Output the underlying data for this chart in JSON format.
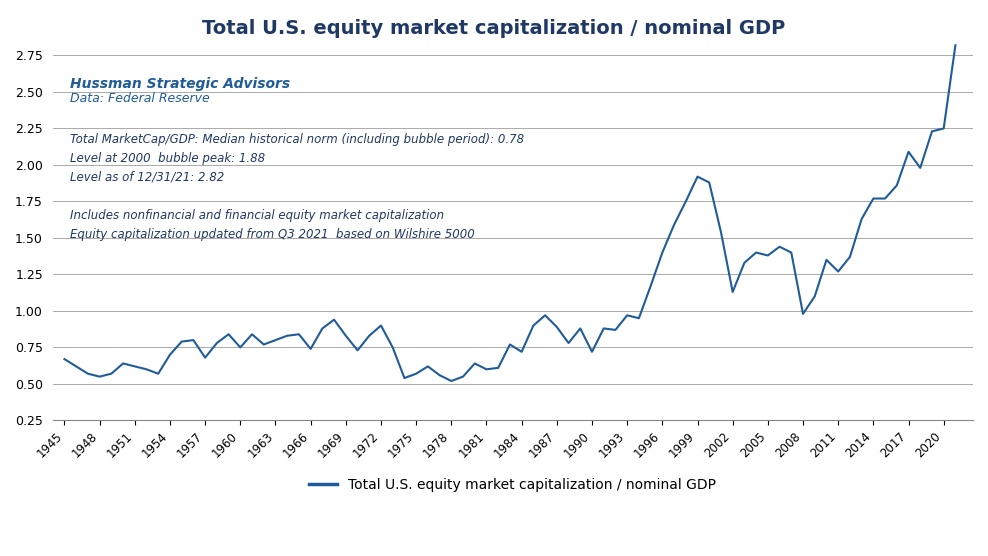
{
  "title": "Total U.S. equity market capitalization / nominal GDP",
  "title_color": "#1F3864",
  "line_color": "#1F5C99",
  "line_width": 1.5,
  "ylabel": "",
  "xlabel": "",
  "legend_label": "Total U.S. equity market capitalization / nominal GDP",
  "annotation1_bold": "Hussman Strategic Advisors",
  "annotation1_italic": "Data: Federal Reserve",
  "annotation2": "Total MarketCap/GDP: Median historical norm (including bubble period): 0.78\nLevel at 2000  bubble peak: 1.88\nLevel as of 12/31/21: 2.82",
  "annotation3": "Includes nonfinancial and financial equity market capitalization\nEquity capitalization updated from Q3 2021  based on Wilshire 5000",
  "annotation_color": "#1F5C99",
  "annotation_color2": "#1F3864",
  "ylim": [
    0.25,
    2.875
  ],
  "yticks": [
    0.25,
    0.5,
    0.75,
    1.0,
    1.25,
    1.5,
    1.75,
    2.0,
    2.25,
    2.5,
    2.75
  ],
  "background_color": "#FFFFFF",
  "grid_color": "#AAAAAA",
  "years": [
    1945,
    1946,
    1947,
    1948,
    1949,
    1950,
    1951,
    1952,
    1953,
    1954,
    1955,
    1956,
    1957,
    1958,
    1959,
    1960,
    1961,
    1962,
    1963,
    1964,
    1965,
    1966,
    1967,
    1968,
    1969,
    1970,
    1971,
    1972,
    1973,
    1974,
    1975,
    1976,
    1977,
    1978,
    1979,
    1980,
    1981,
    1982,
    1983,
    1984,
    1985,
    1986,
    1987,
    1988,
    1989,
    1990,
    1991,
    1992,
    1993,
    1994,
    1995,
    1996,
    1997,
    1998,
    1999,
    2000,
    2001,
    2002,
    2003,
    2004,
    2005,
    2006,
    2007,
    2008,
    2009,
    2010,
    2011,
    2012,
    2013,
    2014,
    2015,
    2016,
    2017,
    2018,
    2019,
    2020,
    2021
  ],
  "values": [
    0.67,
    0.62,
    0.57,
    0.55,
    0.57,
    0.64,
    0.62,
    0.6,
    0.57,
    0.7,
    0.79,
    0.8,
    0.68,
    0.78,
    0.84,
    0.75,
    0.84,
    0.77,
    0.8,
    0.83,
    0.84,
    0.74,
    0.88,
    0.94,
    0.83,
    0.73,
    0.83,
    0.9,
    0.75,
    0.54,
    0.57,
    0.62,
    0.56,
    0.52,
    0.55,
    0.64,
    0.6,
    0.61,
    0.77,
    0.72,
    0.9,
    0.97,
    0.89,
    0.78,
    0.88,
    0.72,
    0.88,
    0.87,
    0.97,
    0.95,
    1.17,
    1.4,
    1.59,
    1.75,
    1.92,
    1.88,
    1.54,
    1.13,
    1.33,
    1.4,
    1.38,
    1.44,
    1.4,
    0.98,
    1.1,
    1.35,
    1.27,
    1.37,
    1.63,
    1.77,
    1.77,
    1.86,
    2.09,
    1.98,
    2.23,
    2.25,
    2.82
  ]
}
